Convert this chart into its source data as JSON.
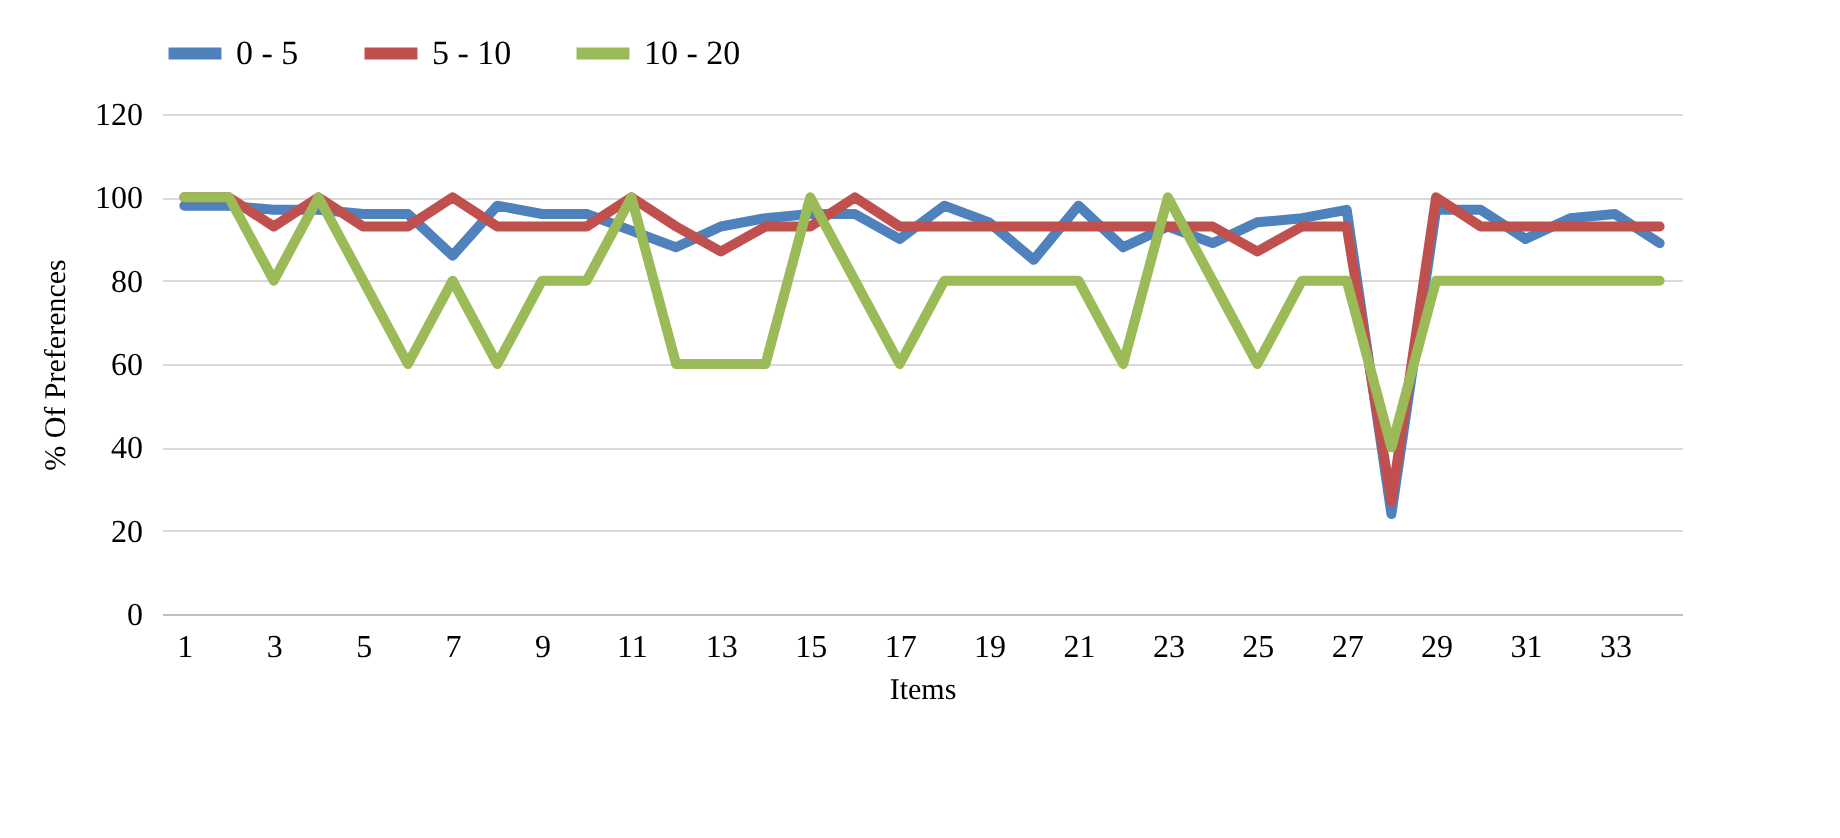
{
  "chart_data": {
    "type": "line",
    "xlabel": "Items",
    "ylabel": "% Of Preferences",
    "x": [
      1,
      2,
      3,
      4,
      5,
      6,
      7,
      8,
      9,
      10,
      11,
      12,
      13,
      14,
      15,
      16,
      17,
      18,
      19,
      20,
      21,
      22,
      23,
      24,
      25,
      26,
      27,
      28,
      29,
      30,
      31,
      32,
      33,
      34
    ],
    "xlim": [
      0.5,
      34.5
    ],
    "xticks": [
      1,
      3,
      5,
      7,
      9,
      11,
      13,
      15,
      17,
      19,
      21,
      23,
      25,
      27,
      29,
      31,
      33
    ],
    "ylim": [
      0,
      120
    ],
    "yticks": [
      0,
      20,
      40,
      60,
      80,
      100,
      120
    ],
    "grid": "y",
    "legend": "top",
    "marker": "none",
    "line_style": "solid",
    "series": [
      {
        "name": "0 - 5",
        "color": "#4f81bd",
        "values": [
          98,
          98,
          97,
          97,
          96,
          96,
          86,
          98,
          96,
          96,
          92,
          88,
          93,
          95,
          96,
          96,
          90,
          98,
          94,
          85,
          98,
          88,
          93,
          89,
          94,
          95,
          97,
          24,
          97,
          97,
          90,
          95,
          96,
          89
        ]
      },
      {
        "name": "5 - 10",
        "color": "#c0504d",
        "values": [
          100,
          100,
          93,
          100,
          93,
          93,
          100,
          93,
          93,
          93,
          100,
          93,
          87,
          93,
          93,
          100,
          93,
          93,
          93,
          93,
          93,
          93,
          93,
          93,
          87,
          93,
          93,
          27,
          100,
          93,
          93,
          93,
          93,
          93
        ]
      },
      {
        "name": "10 - 20",
        "color": "#9bbb59",
        "values": [
          100,
          100,
          80,
          100,
          80,
          60,
          80,
          60,
          80,
          80,
          100,
          60,
          60,
          60,
          100,
          80,
          60,
          80,
          80,
          80,
          80,
          60,
          100,
          80,
          60,
          80,
          80,
          40,
          80,
          80,
          80,
          80,
          80,
          80
        ]
      }
    ]
  }
}
